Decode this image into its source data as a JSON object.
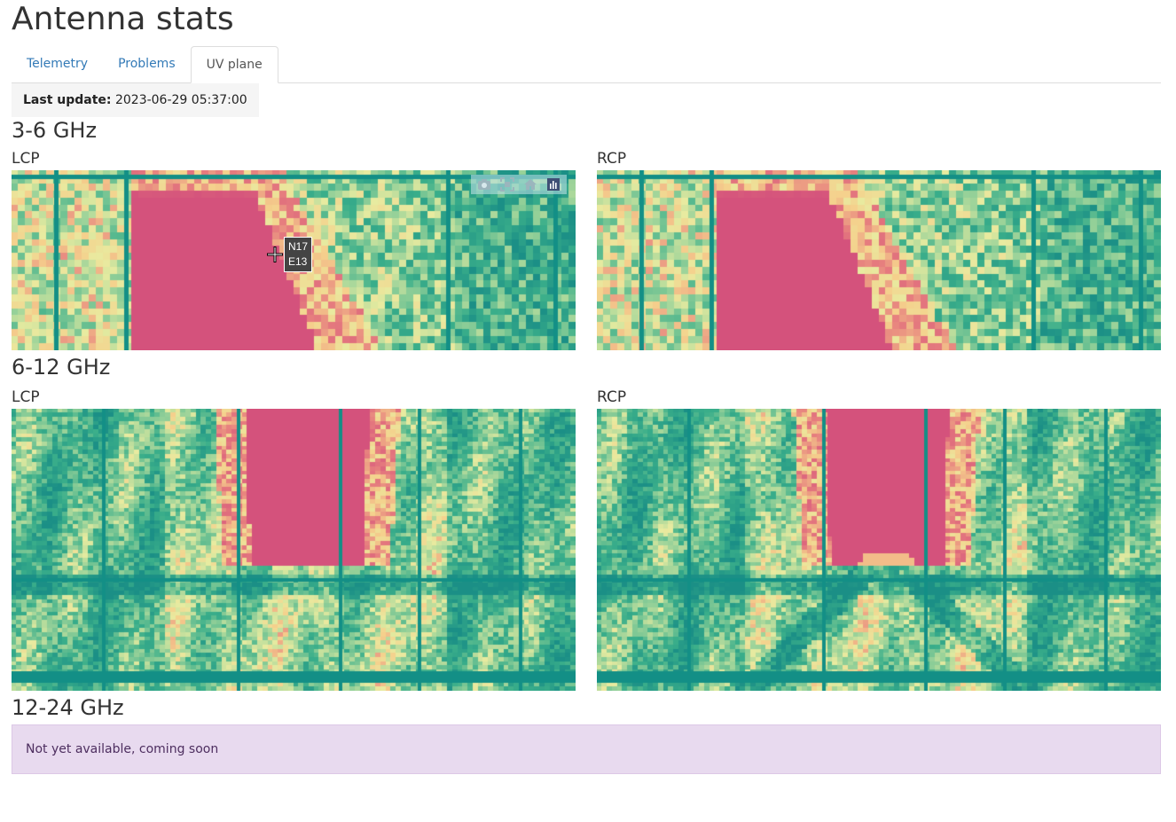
{
  "page": {
    "title": "Antenna stats"
  },
  "tabs": [
    {
      "label": "Telemetry",
      "active": false
    },
    {
      "label": "Problems",
      "active": false
    },
    {
      "label": "UV plane",
      "active": true
    }
  ],
  "last_update": {
    "label": "Last update:",
    "value": "2023-06-29 05:37:00"
  },
  "bands": [
    {
      "title": "3-6 GHz",
      "lcp_label": "LCP",
      "rcp_label": "RCP"
    },
    {
      "title": "6-12 GHz",
      "lcp_label": "LCP",
      "rcp_label": "RCP"
    },
    {
      "title": "12-24 GHz",
      "notice": "Not yet available, coming soon"
    }
  ],
  "tooltip": {
    "line1": "N17",
    "line2": "E13"
  },
  "modebar": {
    "icons": [
      "camera-icon",
      "autoscale-icon",
      "home-icon",
      "plotly-logo-icon"
    ]
  },
  "colors": {
    "low": "#1f9e89",
    "mid": "#f5e49a",
    "high": "#d4527c",
    "grid_line": "#138f86",
    "notice_bg": "#e8daef",
    "link": "#337ab7"
  }
}
